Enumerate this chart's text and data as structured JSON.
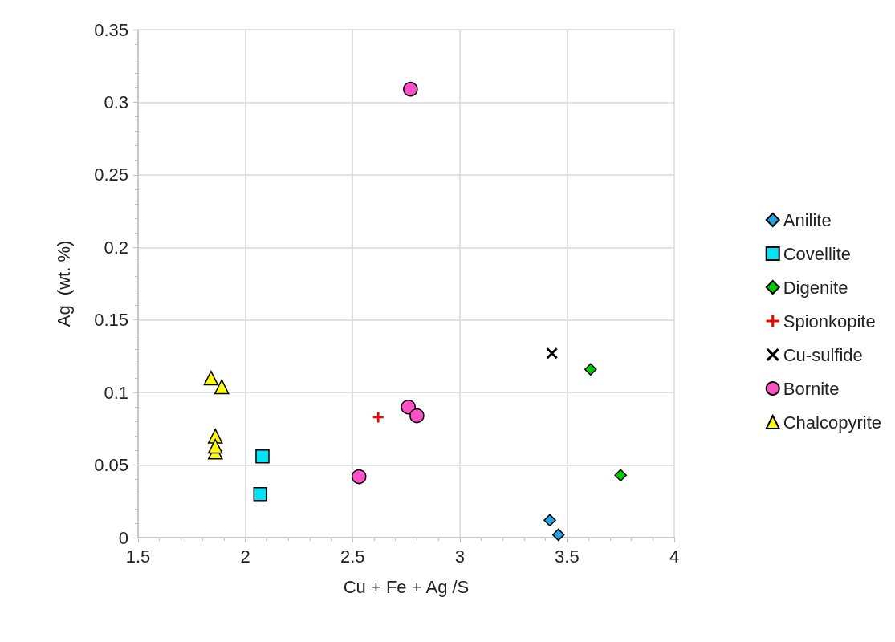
{
  "chart_data": {
    "type": "scatter",
    "xlabel": "Cu + Fe + Ag /S",
    "ylabel": "Ag  (wt. %)",
    "xlim": [
      1.5,
      4
    ],
    "xticks": [
      1.5,
      2,
      2.5,
      3,
      3.5,
      4
    ],
    "ylim": [
      0,
      0.35
    ],
    "yticks": [
      0,
      0.05,
      0.1,
      0.15,
      0.2,
      0.25,
      0.3,
      0.35
    ],
    "grid": true,
    "legend": "right",
    "series": [
      {
        "name": "Anilite",
        "color": "#1ea3e6",
        "marker": "diamond",
        "x": [
          3.42,
          3.46
        ],
        "values": [
          0.012,
          0.002
        ]
      },
      {
        "name": "Covellite",
        "color": "#00e4f8",
        "marker": "square",
        "x": [
          2.08,
          2.07
        ],
        "values": [
          0.056,
          0.03
        ]
      },
      {
        "name": "Digenite",
        "color": "#00cc00",
        "marker": "diamond",
        "x": [
          3.61,
          3.75
        ],
        "values": [
          0.116,
          0.043
        ]
      },
      {
        "name": "Spionkopite",
        "color": "#ff0000",
        "marker": "plus",
        "x": [
          2.62
        ],
        "values": [
          0.083
        ]
      },
      {
        "name": "Cu-sulfide",
        "color": "#000000",
        "marker": "cross",
        "x": [
          3.43
        ],
        "values": [
          0.127
        ]
      },
      {
        "name": "Bornite",
        "color": "#ff50c8",
        "marker": "circle",
        "x": [
          2.77,
          2.76,
          2.8,
          2.53
        ],
        "values": [
          0.309,
          0.09,
          0.084,
          0.042
        ]
      },
      {
        "name": "Chalcopyrite",
        "color": "#ffff00",
        "marker": "triangle",
        "x": [
          1.84,
          1.89,
          1.86,
          1.86,
          1.86
        ],
        "values": [
          0.11,
          0.104,
          0.07,
          0.059,
          0.063
        ]
      }
    ]
  }
}
